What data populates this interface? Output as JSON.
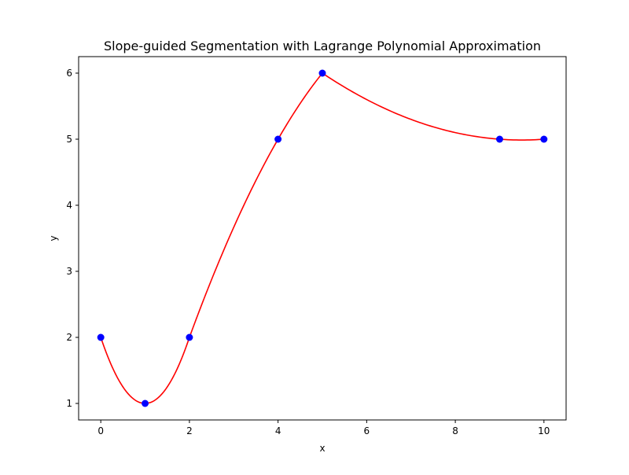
{
  "chart_data": {
    "type": "line",
    "title": "Slope-guided Segmentation with Lagrange Polynomial Approximation",
    "xlabel": "x",
    "ylabel": "y",
    "xlim": [
      -0.5,
      10.5
    ],
    "ylim": [
      0.75,
      6.25
    ],
    "xticks": [
      0,
      2,
      4,
      6,
      8,
      10
    ],
    "yticks": [
      1,
      2,
      3,
      4,
      5,
      6
    ],
    "grid": false,
    "legend": "none",
    "series": [
      {
        "kind": "points",
        "color": "#0000ff",
        "marker": "circle",
        "x": [
          0,
          1,
          2,
          4,
          5,
          9,
          10
        ],
        "y": [
          2,
          1,
          2,
          5,
          6,
          5,
          5
        ]
      },
      {
        "kind": "curve",
        "color": "#ff0000",
        "description": "piecewise Lagrange polynomial segments through the points",
        "segments": [
          {
            "x": [
              0,
              1,
              2
            ],
            "y": [
              2,
              1,
              2
            ]
          },
          {
            "x": [
              2,
              4,
              5
            ],
            "y": [
              2,
              5,
              6
            ]
          },
          {
            "x": [
              5,
              9,
              10
            ],
            "y": [
              6,
              5,
              5
            ]
          }
        ]
      }
    ]
  }
}
